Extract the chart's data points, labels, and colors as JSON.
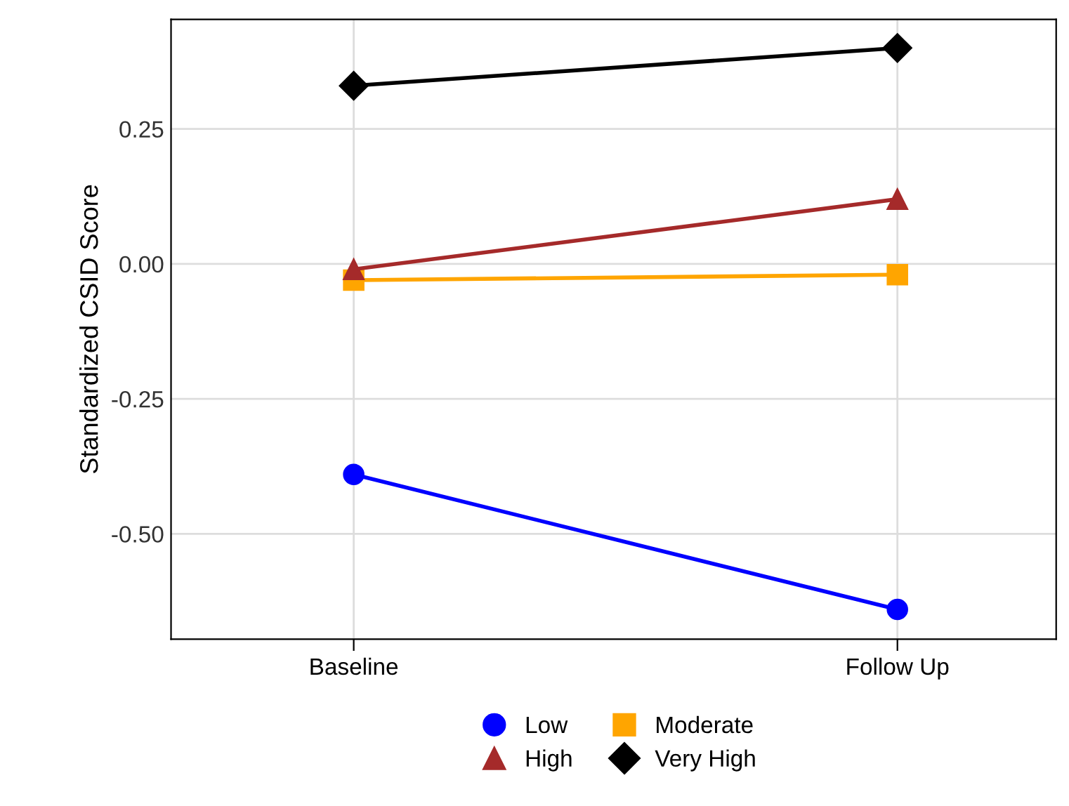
{
  "chart_data": {
    "type": "line",
    "ylabel": "Standardized CSID Score",
    "categories": [
      "Baseline",
      "Follow Up"
    ],
    "series": [
      {
        "name": "Low",
        "color": "#0000ff",
        "marker": "circle",
        "values": [
          -0.39,
          -0.64
        ]
      },
      {
        "name": "Moderate",
        "color": "#ffa500",
        "marker": "square",
        "values": [
          -0.03,
          -0.02
        ]
      },
      {
        "name": "High",
        "color": "#a52a2a",
        "marker": "triangle",
        "values": [
          -0.01,
          0.12
        ]
      },
      {
        "name": "Very High",
        "color": "#000000",
        "marker": "diamond",
        "values": [
          0.33,
          0.4
        ]
      }
    ],
    "ylim": [
      -0.695,
      0.453
    ],
    "yticks": [
      {
        "value": -0.5,
        "label": "-0.50"
      },
      {
        "value": -0.25,
        "label": "-0.25"
      },
      {
        "value": 0,
        "label": "0.00"
      },
      {
        "value": 0.25,
        "label": "0.25"
      }
    ],
    "grid": true,
    "legend": "bottom",
    "line_style": "solid"
  }
}
